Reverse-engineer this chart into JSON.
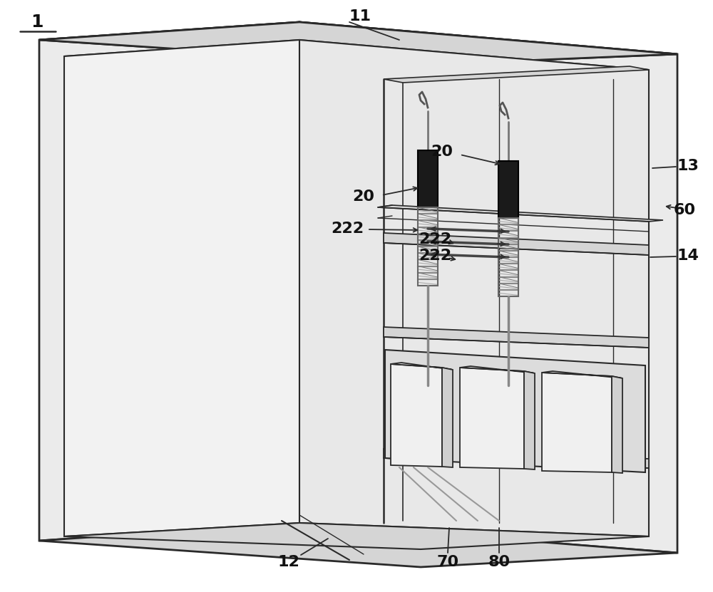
{
  "bg_color": "#ffffff",
  "line_color": "#2a2a2a",
  "fill_white": "#f5f5f5",
  "fill_light": "#ebebeb",
  "fill_mid": "#d5d5d5",
  "fill_dark": "#b0b0b0",
  "fill_inner": "#e8e8e8",
  "fill_black": "#1a1a1a",
  "label_fontsize": 16,
  "label_fontweight": "bold",
  "figsize": [
    10.0,
    8.31
  ],
  "dpi": 100
}
